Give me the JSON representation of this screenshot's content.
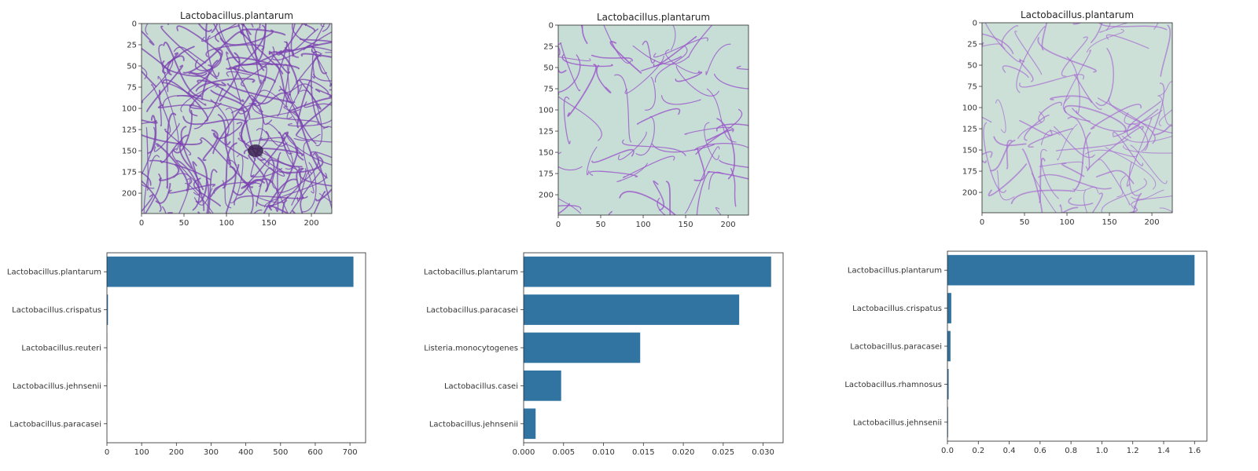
{
  "chart_data": [
    {
      "type": "image",
      "title": "Lactobacillus.plantarum",
      "stain": "dense",
      "xlim": [
        0,
        224
      ],
      "ylim": [
        224,
        0
      ],
      "xticks": [
        0,
        50,
        100,
        150,
        200
      ],
      "yticks": [
        0,
        25,
        50,
        75,
        100,
        125,
        150,
        175,
        200
      ],
      "colors": {
        "background": "#c9dcd3",
        "cells": "#7a3fb0"
      }
    },
    {
      "type": "image",
      "title": "Lactobacillus.plantarum",
      "stain": "sparse",
      "xlim": [
        0,
        224
      ],
      "ylim": [
        224,
        0
      ],
      "xticks": [
        0,
        50,
        100,
        150,
        200
      ],
      "yticks": [
        0,
        25,
        50,
        75,
        100,
        125,
        150,
        175,
        200
      ],
      "colors": {
        "background": "#c7ded6",
        "cells": "#9a55c9"
      }
    },
    {
      "type": "image",
      "title": "Lactobacillus.plantarum",
      "stain": "light",
      "xlim": [
        0,
        224
      ],
      "ylim": [
        224,
        0
      ],
      "xticks": [
        0,
        50,
        100,
        150,
        200
      ],
      "yticks": [
        0,
        25,
        50,
        75,
        100,
        125,
        150,
        175,
        200
      ],
      "colors": {
        "background": "#cce0d8",
        "cells": "#a566d0"
      }
    },
    {
      "type": "bar",
      "orientation": "horizontal",
      "categories": [
        "Lactobacillus.plantarum",
        "Lactobacillus.crispatus",
        "Lactobacillus.reuteri",
        "Lactobacillus.jehnsenii",
        "Lactobacillus.paracasei"
      ],
      "values": [
        710,
        3,
        0.5,
        0.2,
        0.1
      ],
      "xlim": [
        0,
        745
      ],
      "xticks": [
        0,
        100,
        200,
        300,
        400,
        500,
        600,
        700
      ],
      "xtick_labels": [
        "0",
        "100",
        "200",
        "300",
        "400",
        "500",
        "600",
        "700"
      ],
      "color": "#3274a1"
    },
    {
      "type": "bar",
      "orientation": "horizontal",
      "categories": [
        "Lactobacillus.plantarum",
        "Lactobacillus.paracasei",
        "Listeria.monocytogenes",
        "Lactobacillus.casei",
        "Lactobacillus.jehnsenii"
      ],
      "values": [
        0.031,
        0.027,
        0.0146,
        0.0047,
        0.0015
      ],
      "xlim": [
        0,
        0.0325
      ],
      "xticks": [
        0,
        0.005,
        0.01,
        0.015,
        0.02,
        0.025,
        0.03
      ],
      "xtick_labels": [
        "0.000",
        "0.005",
        "0.010",
        "0.015",
        "0.020",
        "0.025",
        "0.030"
      ],
      "color": "#3274a1"
    },
    {
      "type": "bar",
      "orientation": "horizontal",
      "categories": [
        "Lactobacillus.plantarum",
        "Lactobacillus.crispatus",
        "Lactobacillus.paracasei",
        "Lactobacillus.rhamnosus",
        "Lactobacillus.jehnsenii"
      ],
      "values": [
        1.6,
        0.025,
        0.02,
        0.008,
        0.004
      ],
      "xlim": [
        0,
        1.68
      ],
      "xticks": [
        0,
        0.2,
        0.4,
        0.6,
        0.8,
        1.0,
        1.2,
        1.4,
        1.6
      ],
      "xtick_labels": [
        "0.0",
        "0.2",
        "0.4",
        "0.6",
        "0.8",
        "1.0",
        "1.2",
        "1.4",
        "1.6"
      ],
      "color": "#3274a1"
    }
  ]
}
